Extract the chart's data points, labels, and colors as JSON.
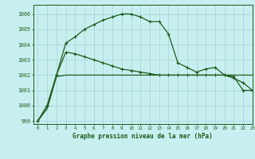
{
  "title": "Graphe pression niveau de la mer (hPa)",
  "bg_color": "#c8eff0",
  "grid_color": "#a8d8dc",
  "line_color": "#1a5c1a",
  "ylim": [
    998.8,
    1006.6
  ],
  "xlim": [
    -0.5,
    23
  ],
  "yticks": [
    999,
    1000,
    1001,
    1002,
    1003,
    1004,
    1005,
    1006
  ],
  "xticks": [
    0,
    1,
    2,
    3,
    4,
    5,
    6,
    7,
    8,
    9,
    10,
    11,
    12,
    13,
    14,
    15,
    16,
    17,
    18,
    19,
    20,
    21,
    22,
    23
  ],
  "series1": [
    999.0,
    999.8,
    1001.9,
    1002.0,
    1002.0,
    1002.0,
    1002.0,
    1002.0,
    1002.0,
    1002.0,
    1002.0,
    1002.0,
    1002.0,
    1002.0,
    1002.0,
    1002.0,
    1002.0,
    1002.0,
    1002.0,
    1002.0,
    1002.0,
    1002.0,
    1002.0,
    1002.0
  ],
  "series2": [
    999.0,
    1000.0,
    1002.0,
    1004.1,
    1004.5,
    1005.0,
    1005.3,
    1005.6,
    1005.8,
    1006.0,
    1006.0,
    1005.8,
    1005.5,
    1005.5,
    1004.7,
    1002.8,
    1002.5,
    1002.2,
    1002.4,
    1002.5,
    1002.0,
    1001.9,
    1001.0,
    1001.0
  ],
  "series3": [
    999.0,
    1000.0,
    1002.0,
    1003.5,
    1003.4,
    1003.2,
    1003.0,
    1002.8,
    1002.6,
    1002.4,
    1002.3,
    1002.2,
    1002.1,
    1002.0,
    1002.0,
    1002.0,
    1002.0,
    1002.0,
    1002.0,
    1002.0,
    1002.0,
    1001.8,
    1001.5,
    1001.0
  ]
}
